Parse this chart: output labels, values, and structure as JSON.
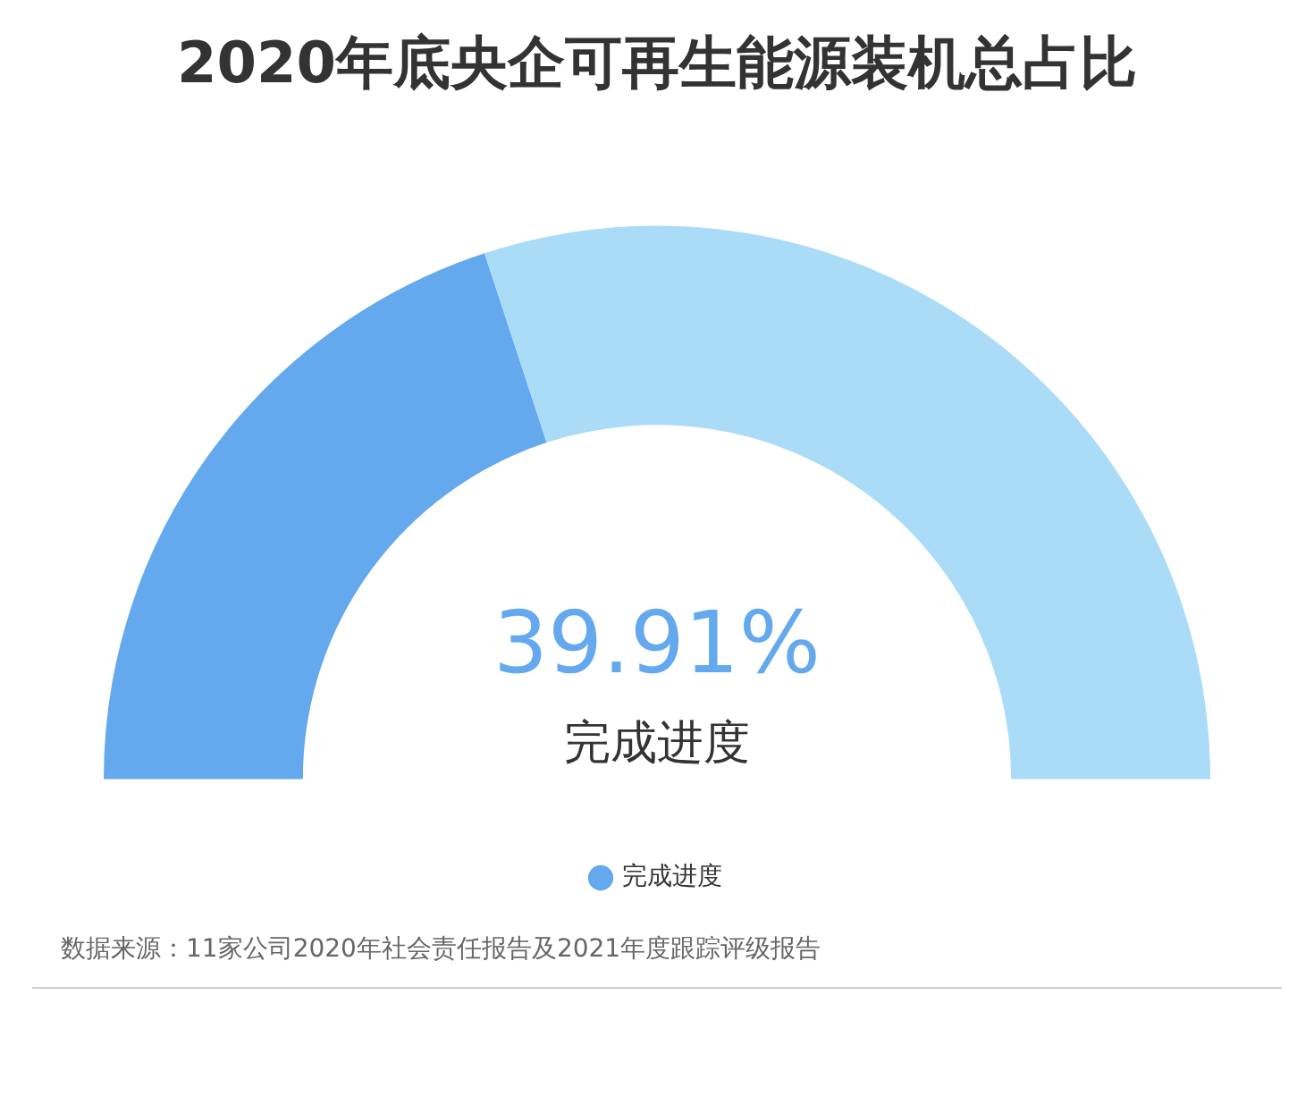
{
  "chart_data": {
    "type": "donut",
    "title": "2020年底央企可再生能源装机总占比",
    "categories": [
      "完成进度",
      null
    ],
    "values": [
      39.91,
      60.09
    ],
    "colors": [
      "#64a9ee",
      "#aadcf8"
    ],
    "legend": "bottom",
    "annotations": [
      "39.91%",
      "数据来源：11家公司2020年社会责任报告及2021年度跟踪评级报告"
    ]
  }
}
